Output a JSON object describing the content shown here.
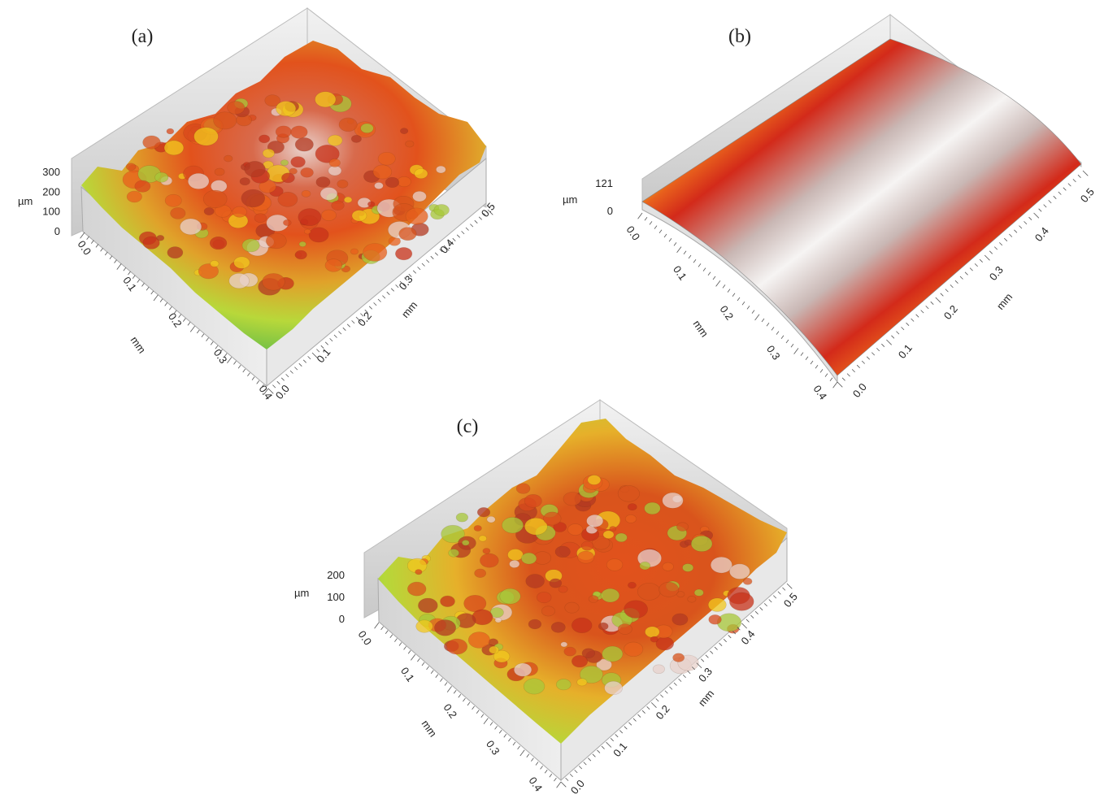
{
  "chart_data": [
    {
      "type": "surface",
      "panel_label": "(a)",
      "z_unit": "µm",
      "z_ticks": [
        "0",
        "100",
        "200",
        "300"
      ],
      "y_ticks": [
        "0.0",
        "0.1",
        "0.2",
        "0.3",
        "0.4"
      ],
      "y_unit": "mm",
      "x_ticks": [
        "0.0",
        "0.1",
        "0.2",
        "0.3",
        "0.4",
        "0.5"
      ],
      "x_unit": "mm",
      "zlim": [
        0,
        300
      ],
      "colormap": [
        "#1c5fb8",
        "#3fb6c8",
        "#39b54a",
        "#c9e23a",
        "#f2c81e",
        "#e8601c",
        "#c8321a",
        "#e9d2cc"
      ]
    },
    {
      "type": "surface",
      "panel_label": "(b)",
      "z_unit": "µm",
      "z_ticks": [
        "0",
        "121"
      ],
      "y_ticks": [
        "0.0",
        "0.1",
        "0.2",
        "0.3",
        "0.4"
      ],
      "y_unit": "mm",
      "x_ticks": [
        "0.0",
        "0.1",
        "0.2",
        "0.3",
        "0.4",
        "0.5"
      ],
      "x_unit": "mm",
      "zlim": [
        0,
        121
      ],
      "colormap": [
        "#0b1f5c",
        "#1c5fb8",
        "#3fb6c8",
        "#39b54a",
        "#e6e01c",
        "#e8601c",
        "#d32a1a",
        "#f4f1f0"
      ]
    },
    {
      "type": "surface",
      "panel_label": "(c)",
      "z_unit": "µm",
      "z_ticks": [
        "0",
        "100",
        "200"
      ],
      "y_ticks": [
        "0.0",
        "0.1",
        "0.2",
        "0.3",
        "0.4"
      ],
      "y_unit": "mm",
      "x_ticks": [
        "0.0",
        "0.1",
        "0.2",
        "0.3",
        "0.4",
        "0.5"
      ],
      "x_unit": "mm",
      "zlim": [
        0,
        200
      ],
      "colormap": [
        "#1c5fb8",
        "#3fb6c8",
        "#39b54a",
        "#c9e23a",
        "#f2c81e",
        "#e8601c",
        "#c8321a",
        "#e9d2cc"
      ]
    }
  ]
}
